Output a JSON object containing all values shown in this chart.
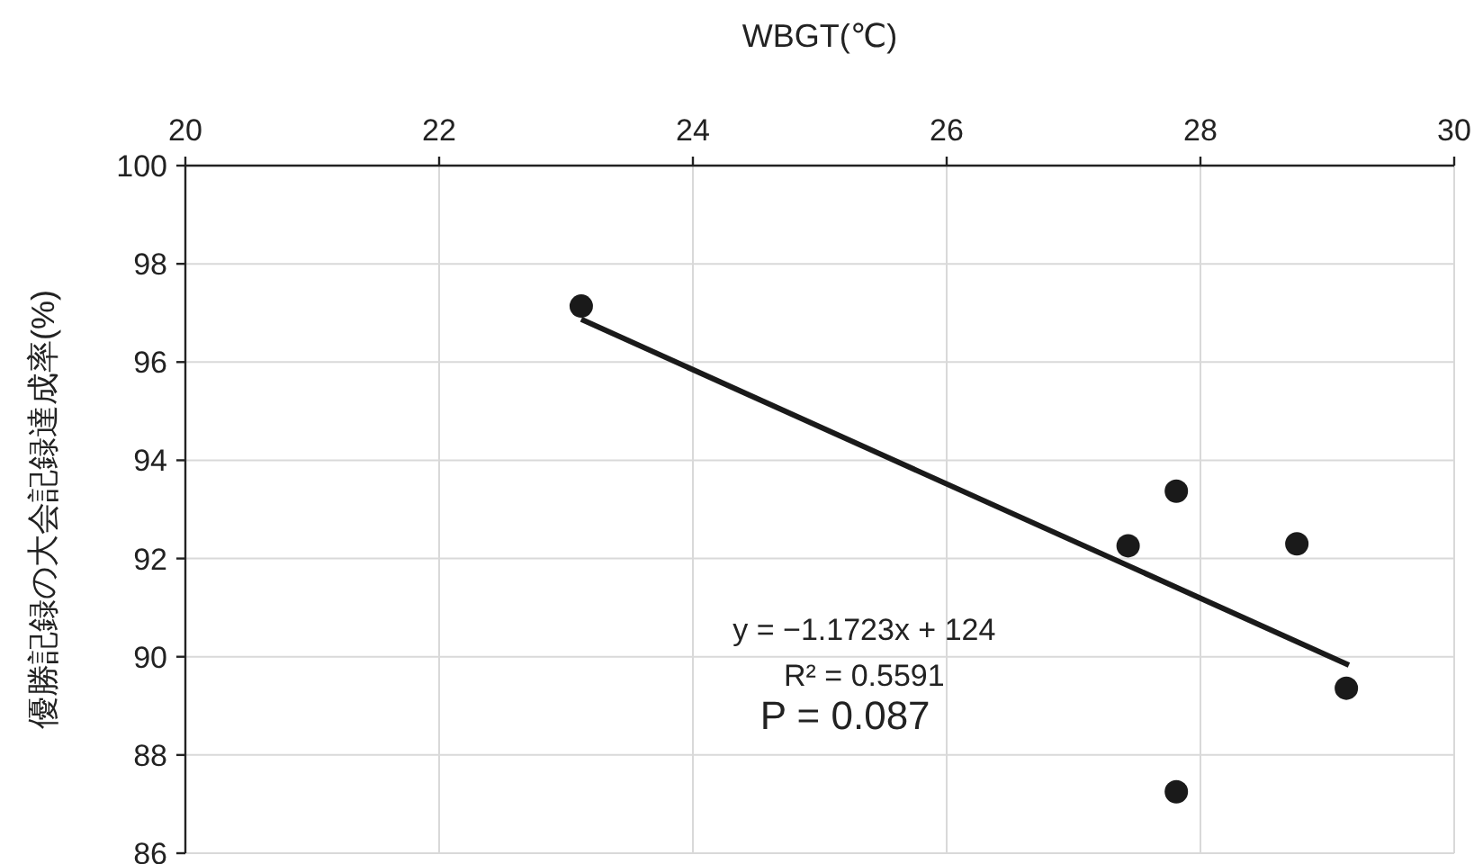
{
  "chart_data": {
    "type": "scatter",
    "xlabel": "WBGT(℃)",
    "ylabel": "優勝記録の大会記録達成率(%)",
    "xlim": [
      20,
      30
    ],
    "xticks": [
      20,
      22,
      24,
      26,
      28,
      30
    ],
    "ylim": [
      86,
      100
    ],
    "yticks": [
      86,
      88,
      90,
      92,
      94,
      96,
      98,
      100
    ],
    "grid": true,
    "series": [
      {
        "marker": "circle",
        "color": "#1a1a1a",
        "x": [
          23.12,
          27.43,
          27.81,
          28.76,
          29.15,
          27.81
        ],
        "values": [
          97.14,
          92.26,
          93.37,
          92.3,
          89.36,
          87.25
        ]
      },
      {
        "type": "line",
        "color": "#1a1a1a",
        "x": [
          23.12,
          29.17
        ],
        "values": [
          96.87,
          89.83
        ]
      }
    ],
    "annotations": [
      "y = −1.1723x + 124",
      "R² = 0.5591",
      "P = 0.087"
    ]
  }
}
